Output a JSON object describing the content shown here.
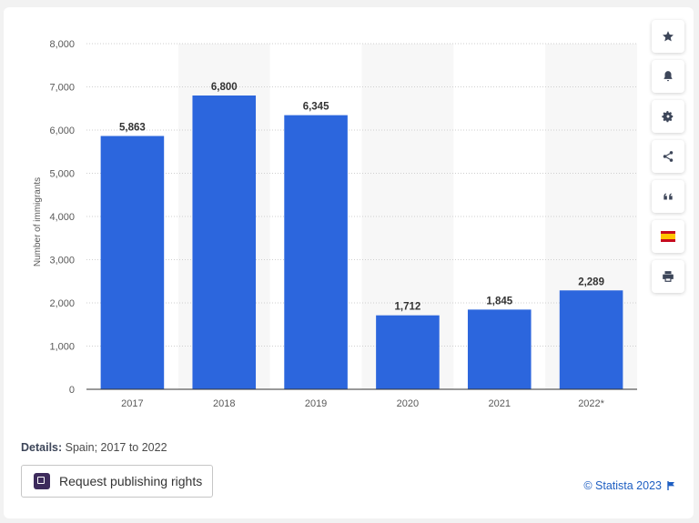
{
  "chart_data": {
    "type": "bar",
    "categories": [
      "2017",
      "2018",
      "2019",
      "2020",
      "2021",
      "2022*"
    ],
    "values": [
      5863,
      6800,
      6345,
      1712,
      1845,
      2289
    ],
    "value_labels": [
      "5,863",
      "6,800",
      "6,345",
      "1,712",
      "1,845",
      "2,289"
    ],
    "ylabel": "Number of immigrants",
    "xlabel": "",
    "ylim": [
      0,
      8000
    ],
    "yticks": [
      0,
      1000,
      2000,
      3000,
      4000,
      5000,
      6000,
      7000,
      8000
    ],
    "ytick_labels": [
      "0",
      "1,000",
      "2,000",
      "3,000",
      "4,000",
      "5,000",
      "6,000",
      "7,000",
      "8,000"
    ],
    "grid": true,
    "bar_color": "#2c66dd",
    "alt_band_color": "#f7f7f7"
  },
  "toolbar": {
    "icons": [
      "star-icon",
      "bell-icon",
      "gear-icon",
      "share-icon",
      "quote-icon",
      "spain-flag-icon",
      "print-icon"
    ]
  },
  "details": {
    "label": "Details:",
    "text": " Spain; 2017 to 2022"
  },
  "publish_button": {
    "label": "Request publishing rights"
  },
  "credit": {
    "text": "© Statista 2023"
  }
}
